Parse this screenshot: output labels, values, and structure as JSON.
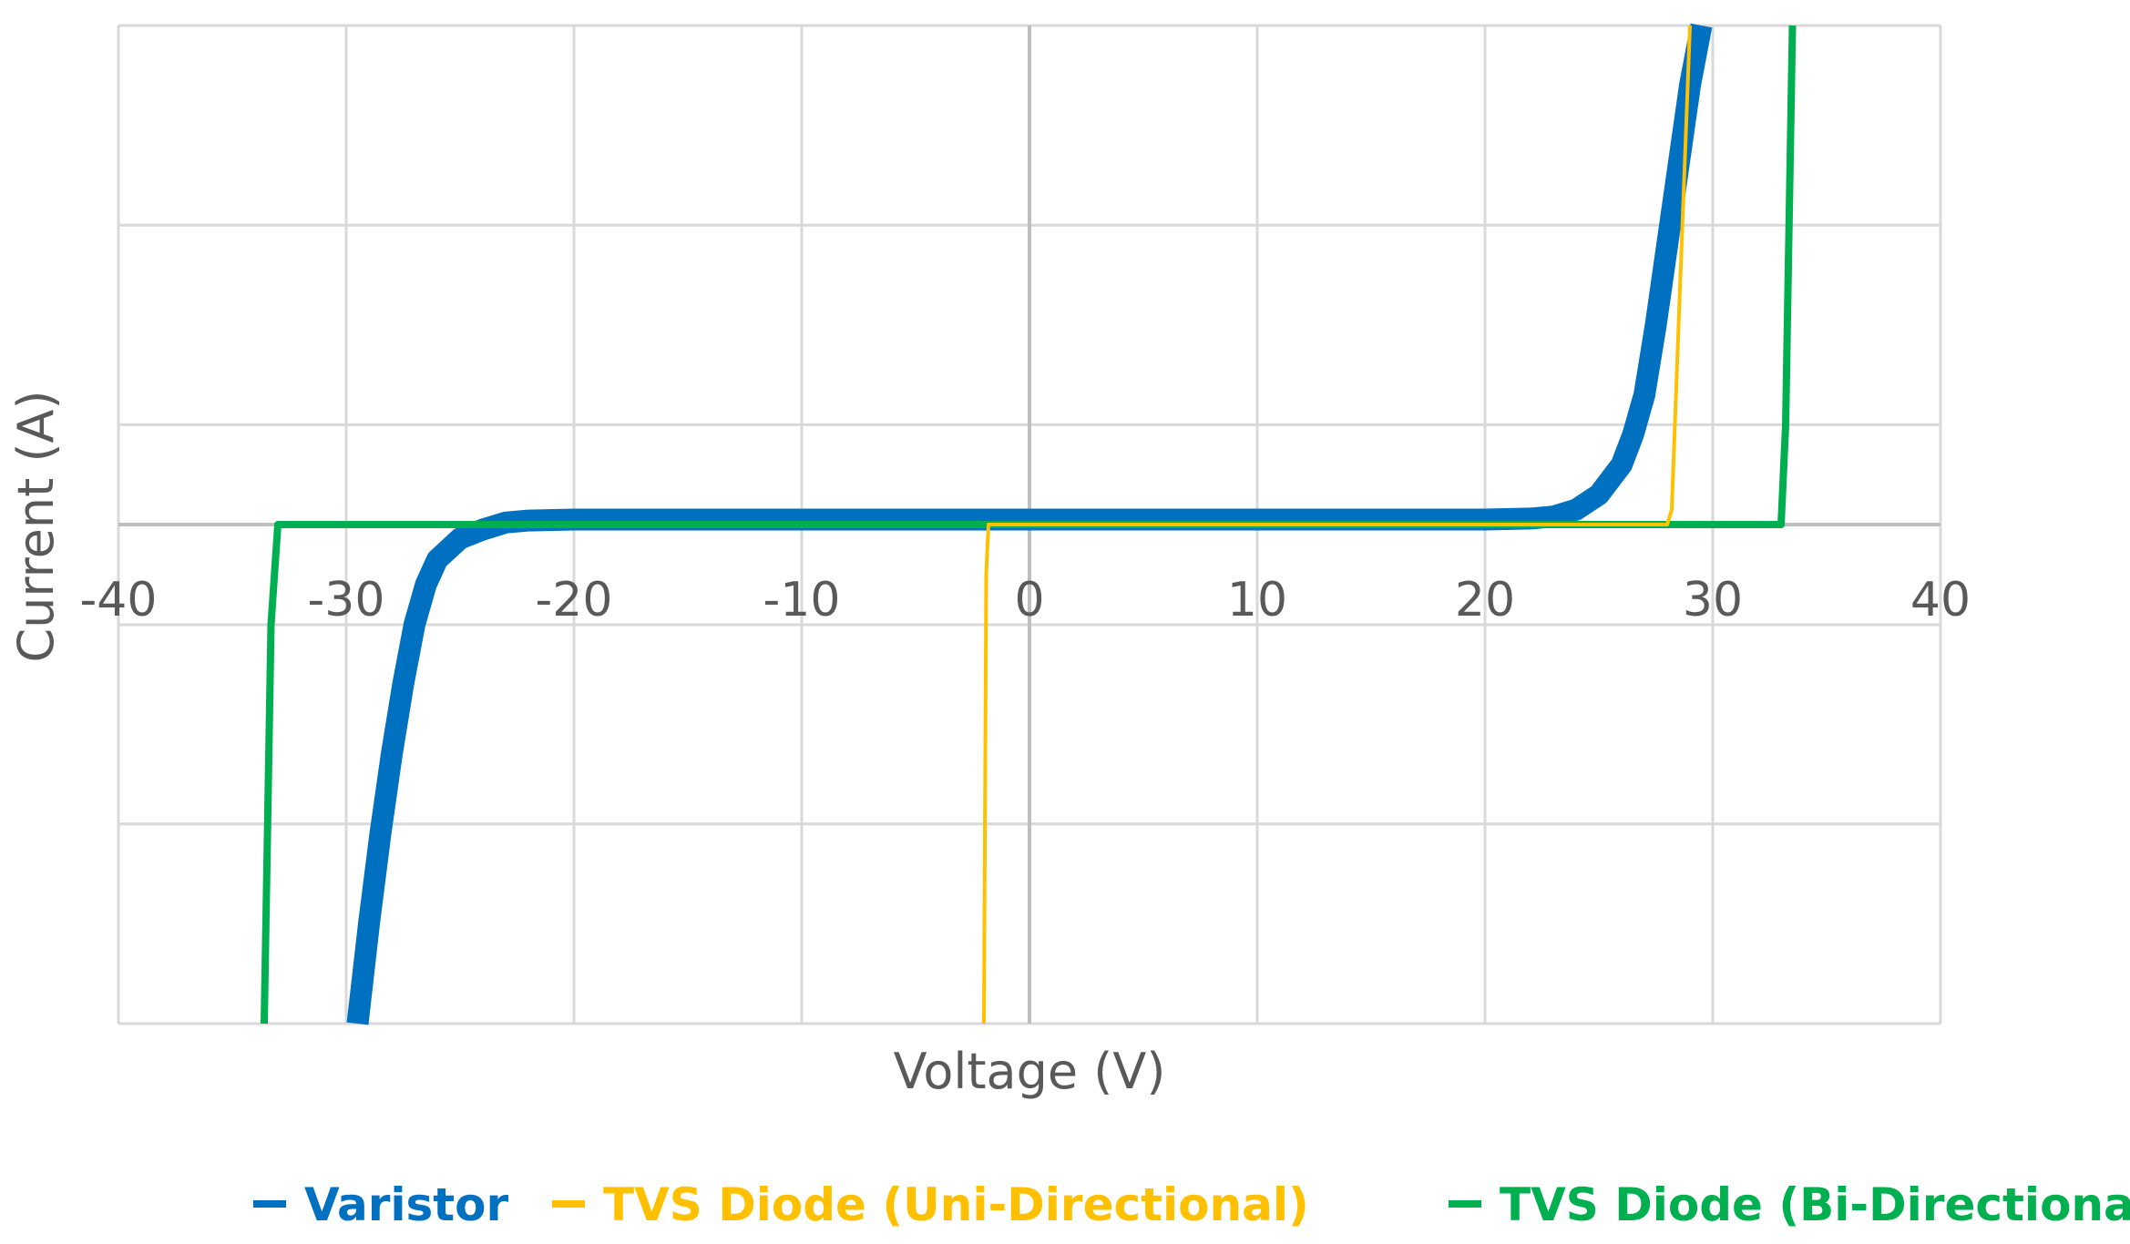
{
  "chart_data": {
    "type": "line",
    "title": "",
    "xlabel": "Voltage (V)",
    "ylabel": "Current (A)",
    "xlim": [
      -40,
      40
    ],
    "ylim": [
      -5,
      5
    ],
    "x_ticks": [
      -40,
      -30,
      -20,
      -10,
      0,
      10,
      20,
      30,
      40
    ],
    "y_gridlines": [
      -5,
      -3,
      0,
      1,
      3,
      5
    ],
    "grid": true,
    "legend_position": "bottom",
    "series": [
      {
        "name": "Varistor",
        "color": "#0070C0",
        "x": [
          -29.5,
          -29.0,
          -28.5,
          -28.0,
          -27.5,
          -27.0,
          -26.5,
          -26.0,
          -25.0,
          -24.0,
          -23.0,
          -22.0,
          -20.0,
          0,
          20.0,
          22.0,
          23.0,
          24.0,
          25.0,
          26.0,
          26.5,
          27.0,
          27.5,
          28.0,
          28.5,
          29.0,
          29.5
        ],
        "y": [
          -5.0,
          -4.0,
          -3.1,
          -2.3,
          -1.6,
          -1.0,
          -0.6,
          -0.35,
          -0.14,
          -0.05,
          0.02,
          0.04,
          0.05,
          0.05,
          0.05,
          0.06,
          0.08,
          0.15,
          0.3,
          0.6,
          0.9,
          1.3,
          2.0,
          2.8,
          3.6,
          4.4,
          5.0
        ]
      },
      {
        "name": "TVS Diode (Uni-Directional)",
        "color": "#FFC000",
        "x": [
          -2.0,
          -1.9,
          -1.8,
          28.0,
          28.2,
          28.5,
          29.0
        ],
        "y": [
          -5.0,
          -0.5,
          0.0,
          0.0,
          0.15,
          2.0,
          5.0
        ]
      },
      {
        "name": "TVS Diode (Bi-Directional)",
        "color": "#00B050",
        "x": [
          -33.6,
          -33.3,
          -33.0,
          33.0,
          33.2,
          33.5
        ],
        "y": [
          -5.0,
          -1.0,
          0.0,
          0.0,
          1.0,
          5.0
        ]
      }
    ]
  }
}
